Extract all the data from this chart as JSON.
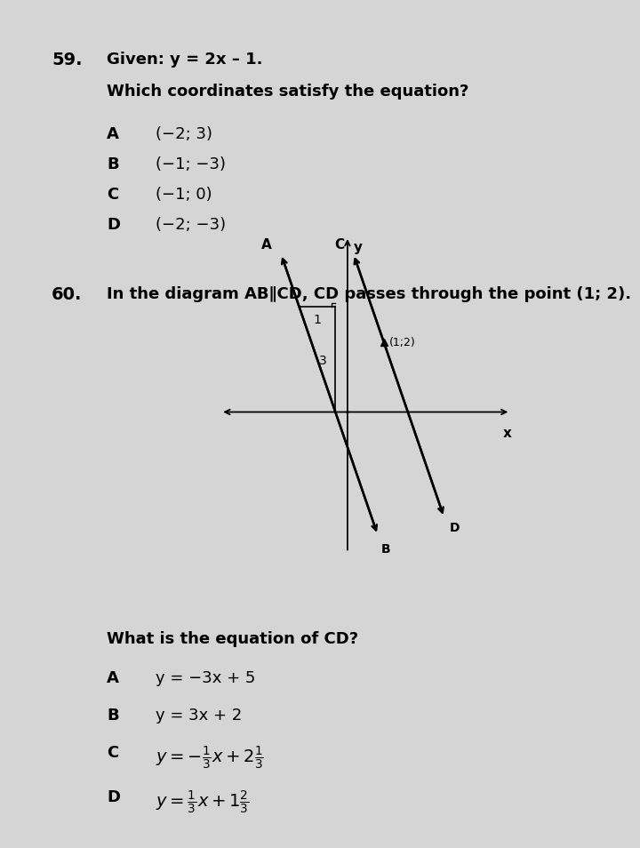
{
  "bg_color": "#d5d5d5",
  "text_color": "#000000",
  "q59_number": "59.",
  "q59_given": "Given: y = 2x – 1.",
  "q59_question": "Which coordinates satisfy the equation?",
  "q59_options": [
    [
      "A",
      "(−2; 3)"
    ],
    [
      "B",
      "(−1; −3)"
    ],
    [
      "C",
      "(−1; 0)"
    ],
    [
      "D",
      "(−2; −3)"
    ]
  ],
  "q60_number": "60.",
  "q60_question": "In the diagram AB∥CD, CD passes through the point (1; 2).",
  "q60_options_A": "y = −3x + 5",
  "q60_options_B": "y = 3x + 2",
  "q60_options_C_pre": "y = −",
  "q60_options_C_frac1_num": "1",
  "q60_options_C_frac1_den": "3",
  "q60_options_C_mid": "x + 2",
  "q60_options_C_frac2_num": "1",
  "q60_options_C_frac2_den": "3",
  "q60_options_D_pre": "y = ",
  "q60_options_D_frac1_num": "1",
  "q60_options_D_frac1_den": "3",
  "q60_options_D_mid": "x + 1",
  "q60_options_D_frac2_num": "2",
  "q60_options_D_frac2_den": "3",
  "q60_sub_question": "What is the equation of CD?",
  "ab_slope": -3,
  "ab_intercept": -0.333,
  "cd_slope": -3,
  "cd_point": [
    1,
    2
  ],
  "triangle_label_3": "3",
  "triangle_label_1": "1"
}
